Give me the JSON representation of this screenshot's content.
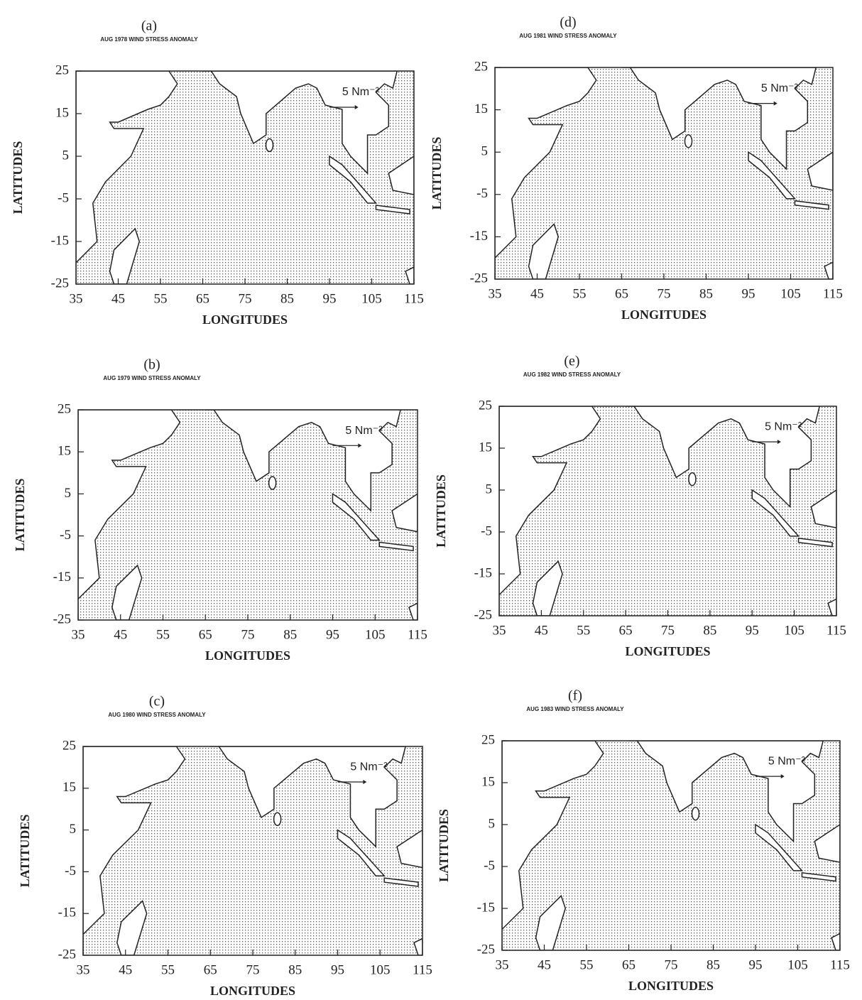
{
  "chart_data": [
    {
      "type": "map",
      "panel": "(a)",
      "title": "AUG 1978 WIND STRESS ANOMALY",
      "xlabel": "LONGITUDES",
      "ylabel": "LATITUDES",
      "annotation": "5 Nm⁻²",
      "xlim": [
        35,
        115
      ],
      "ylim": [
        -25,
        25
      ],
      "xticks": [
        35,
        45,
        55,
        65,
        75,
        85,
        95,
        105,
        115
      ],
      "yticks": [
        25,
        15,
        5,
        -5,
        -15,
        -25
      ]
    },
    {
      "type": "map",
      "panel": "(b)",
      "title": "AUG 1979 WIND STRESS ANOMALY",
      "xlabel": "LONGITUDES",
      "ylabel": "LATITUDES",
      "annotation": "5 Nm⁻²",
      "xlim": [
        35,
        115
      ],
      "ylim": [
        -25,
        25
      ],
      "xticks": [
        35,
        45,
        55,
        65,
        75,
        85,
        95,
        105,
        115
      ],
      "yticks": [
        25,
        15,
        5,
        -5,
        -15,
        -25
      ]
    },
    {
      "type": "map",
      "panel": "(c)",
      "title": "AUG 1980 WIND STRESS ANOMALY",
      "xlabel": "LONGITUDES",
      "ylabel": "LATITUDES",
      "annotation": "5 Nm⁻²",
      "xlim": [
        35,
        115
      ],
      "ylim": [
        -25,
        25
      ],
      "xticks": [
        35,
        45,
        55,
        65,
        75,
        85,
        95,
        105,
        115
      ],
      "yticks": [
        25,
        15,
        5,
        -5,
        -15,
        -25
      ]
    },
    {
      "type": "map",
      "panel": "(d)",
      "title": "AUG 1981 WIND STRESS ANOMALY",
      "xlabel": "LONGITUDES",
      "ylabel": "LATITUDES",
      "annotation": "5 Nm⁻²",
      "xlim": [
        35,
        115
      ],
      "ylim": [
        -25,
        25
      ],
      "xticks": [
        35,
        45,
        55,
        65,
        75,
        85,
        95,
        105,
        115
      ],
      "yticks": [
        25,
        15,
        5,
        -5,
        -15,
        -25
      ]
    },
    {
      "type": "map",
      "panel": "(e)",
      "title": "AUG 1982 WIND STRESS ANOMALY",
      "xlabel": "LONGITUDES",
      "ylabel": "LATITUDES",
      "annotation": "5 Nm⁻²",
      "xlim": [
        35,
        115
      ],
      "ylim": [
        -25,
        25
      ],
      "xticks": [
        35,
        45,
        55,
        65,
        75,
        85,
        95,
        105,
        115
      ],
      "yticks": [
        25,
        15,
        5,
        -5,
        -15,
        -25
      ]
    },
    {
      "type": "map",
      "panel": "(f)",
      "title": "AUG 1983 WIND STRESS ANOMALY",
      "xlabel": "LONGITUDES",
      "ylabel": "LATITUDES",
      "annotation": "5 Nm⁻²",
      "xlim": [
        35,
        115
      ],
      "ylim": [
        -25,
        25
      ],
      "xticks": [
        35,
        45,
        55,
        65,
        75,
        85,
        95,
        105,
        115
      ],
      "yticks": [
        25,
        15,
        5,
        -5,
        -15,
        -25
      ]
    }
  ]
}
